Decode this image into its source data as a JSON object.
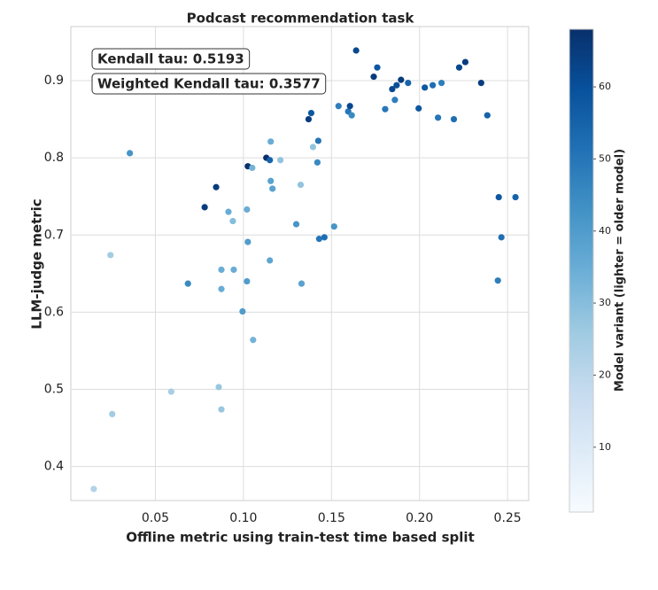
{
  "chart_data": {
    "type": "scatter",
    "title": "Podcast recommendation task",
    "x_label": "Offline metric using train-test time based split",
    "y_label": "LLM-judge metric",
    "colorbar_label": "Model variant (lighter = older model)",
    "annotations": [
      "Kendall tau: 0.5193",
      "Weighted Kendall tau: 0.3577"
    ],
    "x": [
      0.015,
      0.0245,
      0.0255,
      0.0355,
      0.059,
      0.0685,
      0.078,
      0.0845,
      0.086,
      0.0875,
      0.0875,
      0.0875,
      0.0915,
      0.094,
      0.0945,
      0.0995,
      0.102,
      0.1025,
      0.102,
      0.1025,
      0.105,
      0.1055,
      0.113,
      0.1155,
      0.115,
      0.1155,
      0.1165,
      0.115,
      0.121,
      0.13,
      0.1325,
      0.133,
      0.137,
      0.1385,
      0.1395,
      0.1425,
      0.142,
      0.143,
      0.146,
      0.1515,
      0.154,
      0.1595,
      0.1605,
      0.1615,
      0.164,
      0.174,
      0.176,
      0.1805,
      0.1845,
      0.186,
      0.187,
      0.1895,
      0.1935,
      0.1995,
      0.203,
      0.2075,
      0.2105,
      0.2125,
      0.2195,
      0.2225,
      0.226,
      0.235,
      0.2385,
      0.245,
      0.2445,
      0.2465,
      0.2545
    ],
    "y": [
      0.371,
      0.674,
      0.468,
      0.806,
      0.497,
      0.637,
      0.736,
      0.762,
      0.503,
      0.655,
      0.63,
      0.474,
      0.73,
      0.718,
      0.655,
      0.601,
      0.733,
      0.691,
      0.64,
      0.789,
      0.787,
      0.564,
      0.8,
      0.821,
      0.797,
      0.77,
      0.76,
      0.667,
      0.797,
      0.714,
      0.765,
      0.637,
      0.85,
      0.858,
      0.814,
      0.822,
      0.794,
      0.695,
      0.697,
      0.711,
      0.867,
      0.86,
      0.867,
      0.855,
      0.939,
      0.905,
      0.917,
      0.863,
      0.889,
      0.875,
      0.894,
      0.901,
      0.897,
      0.864,
      0.891,
      0.894,
      0.852,
      0.897,
      0.85,
      0.917,
      0.924,
      0.897,
      0.855,
      0.749,
      0.641,
      0.697,
      0.749
    ],
    "color_values": [
      22,
      25,
      25,
      42,
      24,
      45,
      65,
      65,
      27,
      35,
      35,
      27,
      35,
      30,
      35,
      40,
      35,
      40,
      40,
      68,
      33,
      33,
      68,
      35,
      55,
      38,
      38,
      37,
      28,
      42,
      28,
      38,
      65,
      58,
      28,
      50,
      45,
      50,
      52,
      42,
      48,
      50,
      62,
      45,
      62,
      65,
      58,
      50,
      62,
      48,
      60,
      65,
      55,
      58,
      58,
      52,
      50,
      48,
      52,
      62,
      65,
      65,
      55,
      58,
      48,
      52,
      55
    ],
    "colormap": [
      "#f7fbff",
      "#deebf7",
      "#c6dbef",
      "#9ecae1",
      "#6baed6",
      "#4292c6",
      "#2171b5",
      "#08519c",
      "#08306b"
    ],
    "xlim": [
      0.002,
      0.262
    ],
    "ylim": [
      0.356,
      0.97
    ],
    "clim": [
      1,
      68
    ],
    "xticks": [
      0.05,
      {
        "value": 0.1,
        "label": "0.10"
      },
      0.15,
      {
        "value": 0.2,
        "label": "0.20"
      },
      0.25
    ],
    "yticks": [
      0.4,
      0.5,
      0.6,
      0.7,
      0.8,
      0.9
    ],
    "cticks": [
      10,
      20,
      30,
      40,
      50,
      60
    ],
    "grid": true
  }
}
